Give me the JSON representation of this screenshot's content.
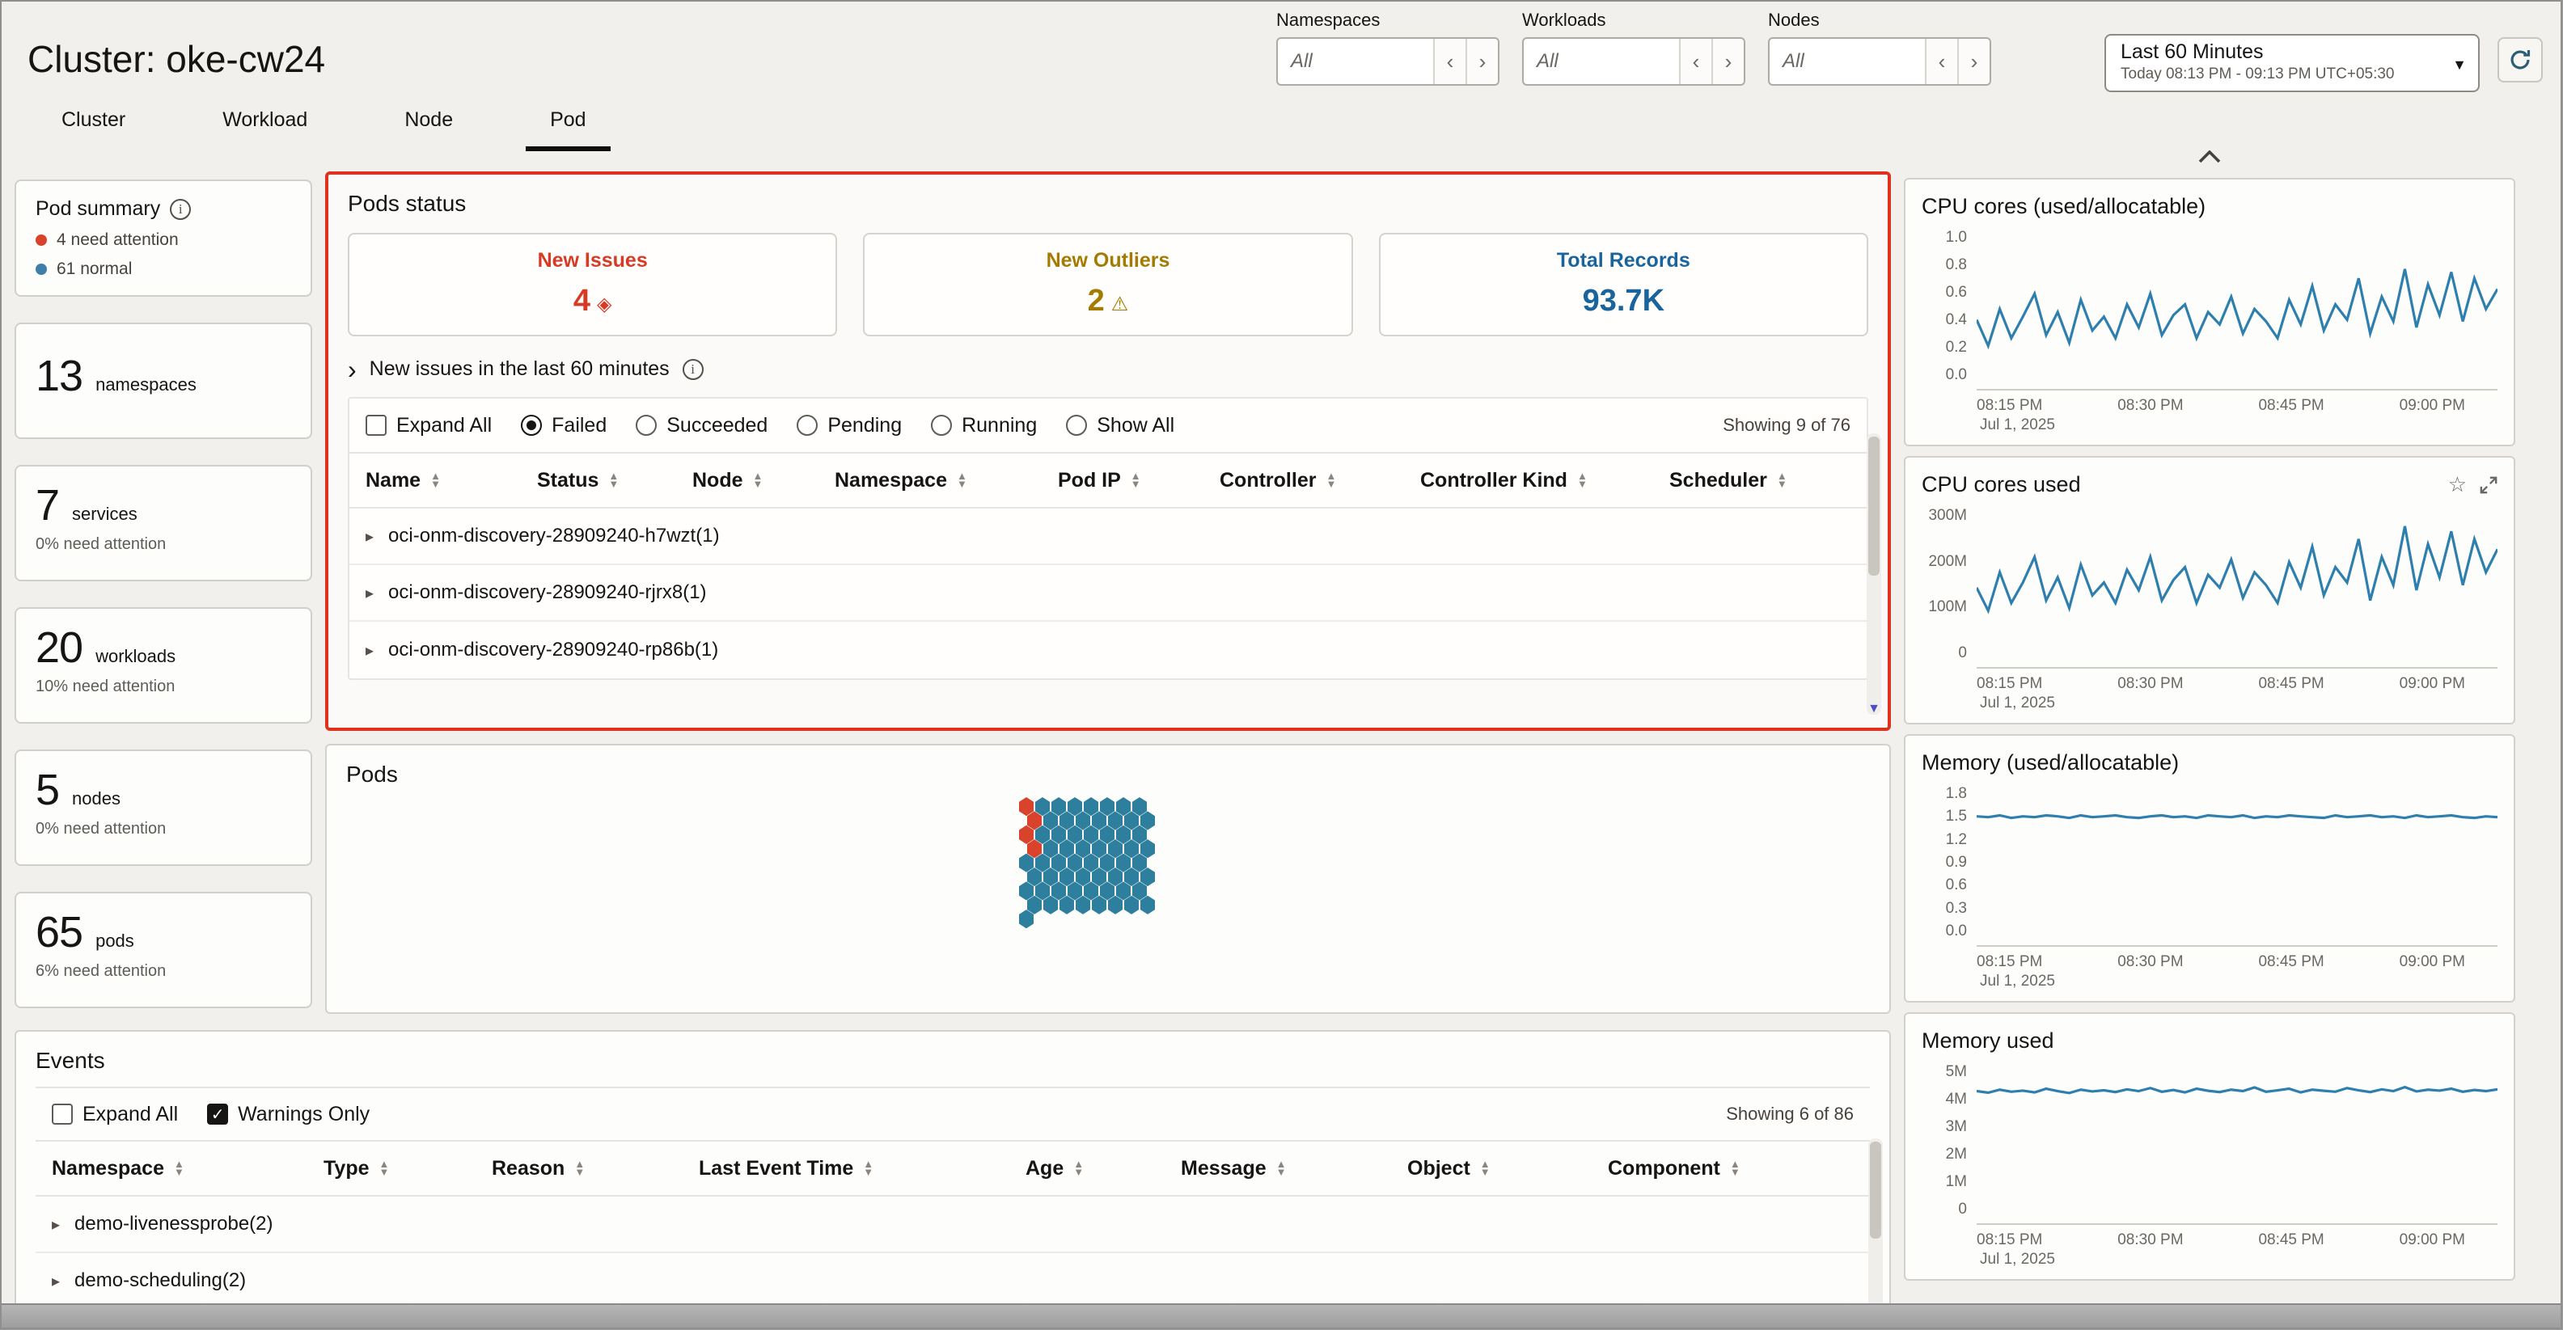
{
  "window": {
    "title": "Cluster: oke-cw24"
  },
  "tabs": [
    {
      "label": "Cluster",
      "active": false
    },
    {
      "label": "Workload",
      "active": false
    },
    {
      "label": "Node",
      "active": false
    },
    {
      "label": "Pod",
      "active": true
    }
  ],
  "top_filters": [
    {
      "label": "Namespaces",
      "value": "All"
    },
    {
      "label": "Workloads",
      "value": "All"
    },
    {
      "label": "Nodes",
      "value": "All"
    }
  ],
  "time_picker": {
    "range": "Last 60 Minutes",
    "detail": "Today 08:13 PM - 09:13 PM UTC+05:30"
  },
  "sidebar": {
    "summary": {
      "title": "Pod summary",
      "legend": [
        {
          "label": "4 need attention",
          "color": "#d9432c"
        },
        {
          "label": "61 normal",
          "color": "#3f7ea8"
        }
      ]
    },
    "cards": [
      {
        "count": "13",
        "label": "namespaces",
        "sub": ""
      },
      {
        "count": "7",
        "label": "services",
        "sub": "0% need attention"
      },
      {
        "count": "20",
        "label": "workloads",
        "sub": "10% need attention"
      },
      {
        "count": "5",
        "label": "nodes",
        "sub": "0% need attention"
      },
      {
        "count": "65",
        "label": "pods",
        "sub": "6% need attention"
      }
    ]
  },
  "pods_status": {
    "title": "Pods status",
    "stats": [
      {
        "label": "New Issues",
        "value": "4",
        "color": "#d63b25",
        "icon": "issue-diamond"
      },
      {
        "label": "New Outliers",
        "value": "2",
        "color": "#a37b00",
        "icon": "warning-triangle"
      },
      {
        "label": "Total Records",
        "value": "93.7K",
        "color": "#19649c",
        "icon": ""
      }
    ],
    "expander_label": "New issues in the last 60 minutes",
    "filters": {
      "expand_all": "Expand All",
      "radios": [
        {
          "label": "Failed",
          "selected": true
        },
        {
          "label": "Succeeded",
          "selected": false
        },
        {
          "label": "Pending",
          "selected": false
        },
        {
          "label": "Running",
          "selected": false
        },
        {
          "label": "Show All",
          "selected": false
        }
      ],
      "showing": "Showing 9 of 76"
    },
    "table": {
      "columns": [
        "Name",
        "Status",
        "Node",
        "Namespace",
        "Pod IP",
        "Controller",
        "Controller Kind",
        "Scheduler"
      ],
      "rows": [
        {
          "name": "oci-onm-discovery-28909240-h7wzt(1)"
        },
        {
          "name": "oci-onm-discovery-28909240-rjrx8(1)"
        },
        {
          "name": "oci-onm-discovery-28909240-rp86b(1)"
        }
      ]
    }
  },
  "pods_map": {
    "title": "Pods",
    "row_lengths": [
      8,
      8,
      8,
      8,
      8,
      8,
      8,
      8,
      1
    ],
    "red_cells": [
      [
        0,
        0
      ],
      [
        1,
        0
      ],
      [
        2,
        0
      ],
      [
        3,
        0
      ]
    ],
    "attention_color": "#d9432c",
    "normal_color": "#2d7f9d"
  },
  "events": {
    "title": "Events",
    "expand_all": "Expand All",
    "warnings_only": "Warnings Only",
    "showing": "Showing 6 of 86",
    "columns": [
      "Namespace",
      "Type",
      "Reason",
      "Last Event Time",
      "Age",
      "Message",
      "Object",
      "Component"
    ],
    "rows": [
      {
        "name": "demo-livenessprobe(2)"
      },
      {
        "name": "demo-scheduling(2)"
      }
    ]
  },
  "charts": [
    {
      "type": "line",
      "title": "CPU cores (used/allocatable)",
      "color": "#2e7fae",
      "ymin": 0,
      "ymax": 1.0,
      "yticks": [
        "1.0",
        "0.8",
        "0.6",
        "0.4",
        "0.2",
        "0.0"
      ],
      "xticks": [
        "08:15 PM",
        "08:30 PM",
        "08:45 PM",
        "09:00 PM"
      ],
      "xdate": "Jul 1, 2025",
      "values": [
        0.45,
        0.28,
        0.52,
        0.33,
        0.47,
        0.62,
        0.35,
        0.5,
        0.3,
        0.58,
        0.38,
        0.47,
        0.33,
        0.55,
        0.4,
        0.62,
        0.35,
        0.48,
        0.55,
        0.33,
        0.5,
        0.42,
        0.6,
        0.36,
        0.52,
        0.44,
        0.33,
        0.58,
        0.42,
        0.67,
        0.38,
        0.55,
        0.45,
        0.72,
        0.36,
        0.6,
        0.44,
        0.78,
        0.4,
        0.68,
        0.48,
        0.76,
        0.44,
        0.72,
        0.52,
        0.65
      ]
    },
    {
      "type": "line",
      "title": "CPU cores used",
      "color": "#2e7fae",
      "ymin": 0,
      "ymax": 300,
      "yticks": [
        "300M",
        "200M",
        "100M",
        "0"
      ],
      "xticks": [
        "08:15 PM",
        "08:30 PM",
        "08:45 PM",
        "09:00 PM"
      ],
      "xdate": "Jul 1, 2025",
      "values": [
        155,
        110,
        185,
        125,
        165,
        215,
        130,
        175,
        115,
        200,
        140,
        165,
        125,
        190,
        150,
        215,
        130,
        170,
        195,
        125,
        180,
        155,
        210,
        135,
        185,
        160,
        125,
        205,
        155,
        235,
        140,
        195,
        165,
        250,
        130,
        215,
        160,
        275,
        150,
        240,
        175,
        265,
        160,
        250,
        185,
        230
      ]
    },
    {
      "type": "line",
      "title": "Memory (used/allocatable)",
      "color": "#2e7fae",
      "ymin": 0,
      "ymax": 1.8,
      "yticks": [
        "1.8",
        "1.5",
        "1.2",
        "0.9",
        "0.6",
        "0.3",
        "0.0"
      ],
      "xticks": [
        "08:15 PM",
        "08:30 PM",
        "08:45 PM",
        "09:00 PM"
      ],
      "xdate": "Jul 1, 2025",
      "values": [
        1.51,
        1.5,
        1.52,
        1.49,
        1.51,
        1.5,
        1.52,
        1.51,
        1.49,
        1.52,
        1.5,
        1.51,
        1.52,
        1.5,
        1.49,
        1.51,
        1.52,
        1.5,
        1.51,
        1.49,
        1.52,
        1.51,
        1.5,
        1.52,
        1.49,
        1.51,
        1.5,
        1.52,
        1.51,
        1.5,
        1.49,
        1.52,
        1.5,
        1.51,
        1.52,
        1.5,
        1.51,
        1.49,
        1.52,
        1.5,
        1.51,
        1.52,
        1.5,
        1.49,
        1.51,
        1.5
      ]
    },
    {
      "type": "line",
      "title": "Memory used",
      "color": "#2e7fae",
      "ymin": 0,
      "ymax": 5,
      "yticks": [
        "5M",
        "4M",
        "3M",
        "2M",
        "1M",
        "0"
      ],
      "xticks": [
        "08:15 PM",
        "08:30 PM",
        "08:45 PM",
        "09:00 PM"
      ],
      "xdate": "Jul 1, 2025",
      "values": [
        4.3,
        4.25,
        4.35,
        4.28,
        4.32,
        4.26,
        4.38,
        4.3,
        4.24,
        4.35,
        4.29,
        4.33,
        4.27,
        4.36,
        4.3,
        4.4,
        4.28,
        4.34,
        4.26,
        4.38,
        4.31,
        4.27,
        4.35,
        4.3,
        4.42,
        4.28,
        4.33,
        4.38,
        4.26,
        4.35,
        4.31,
        4.28,
        4.4,
        4.33,
        4.27,
        4.36,
        4.3,
        4.43,
        4.29,
        4.35,
        4.32,
        4.38,
        4.28,
        4.34,
        4.3,
        4.36
      ]
    }
  ]
}
